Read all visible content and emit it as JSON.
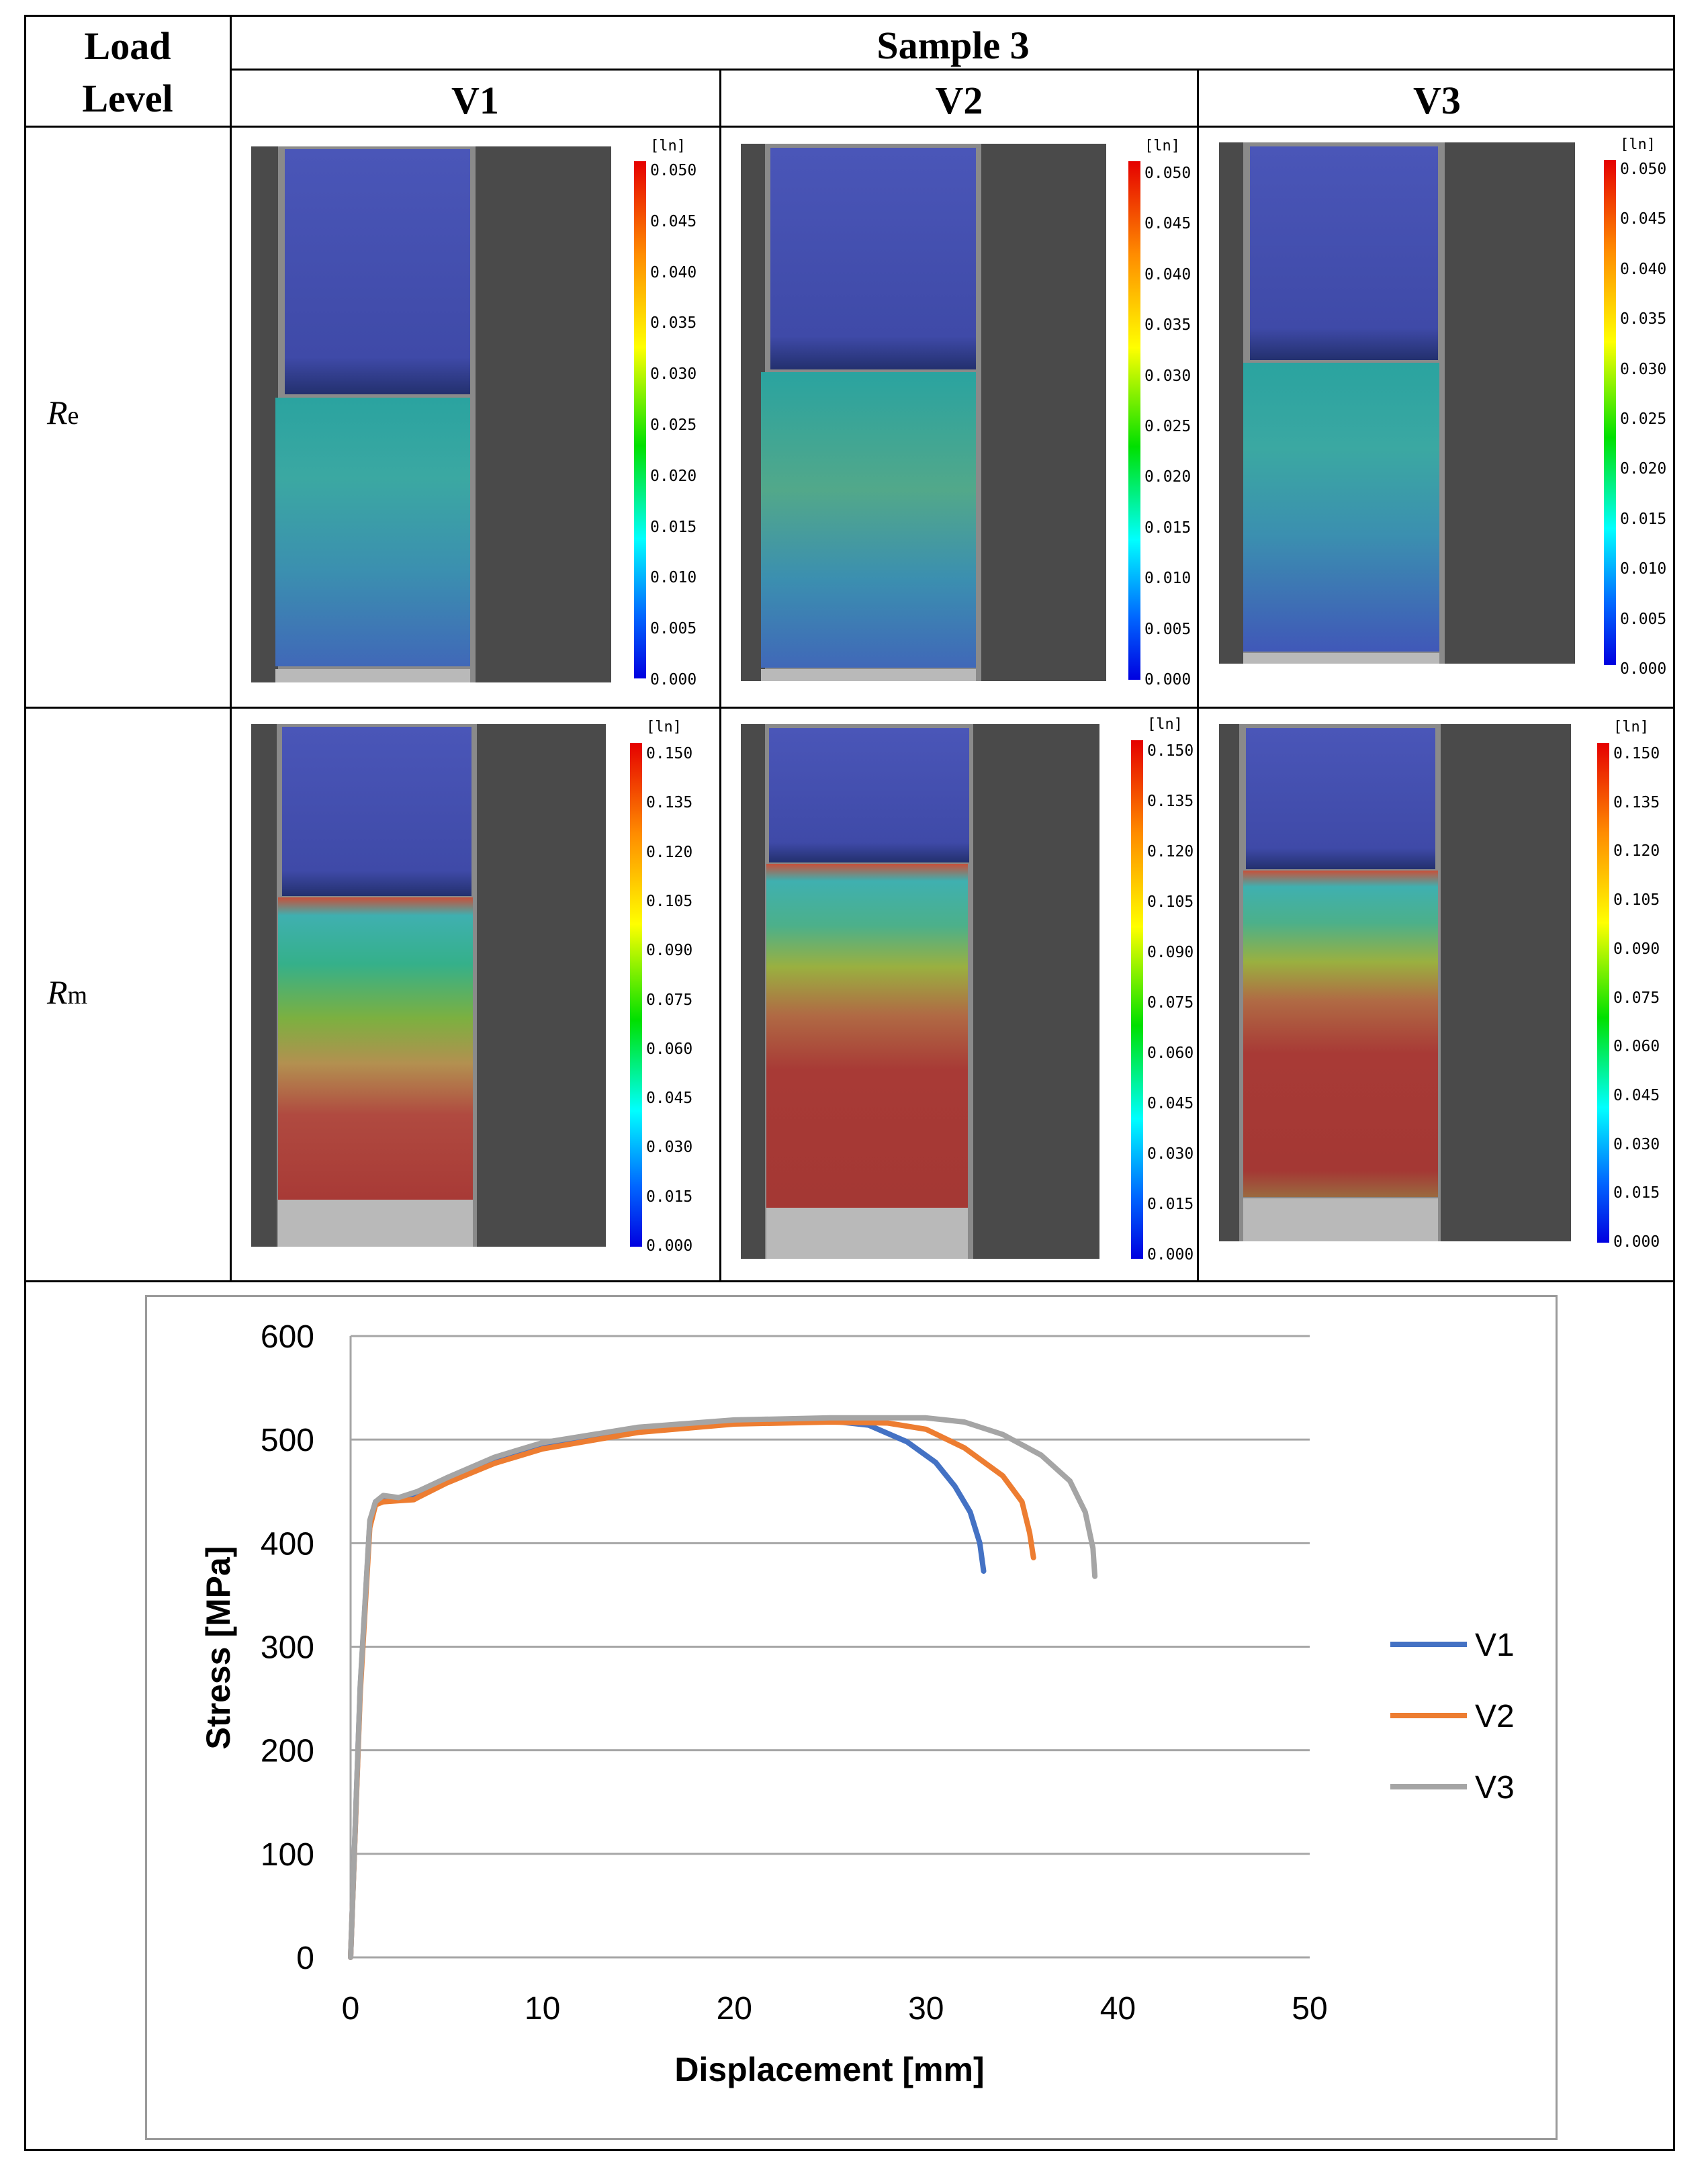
{
  "table": {
    "col_header_load": "Load Level",
    "col_header_sample": "Sample 3",
    "variants": [
      "V1",
      "V2",
      "V3"
    ],
    "rows": [
      {
        "base": "R",
        "sub": "e"
      },
      {
        "base": "R",
        "sub": "m"
      }
    ]
  },
  "colorbars": {
    "unit": "[ln]",
    "re_ticks": [
      "0.050",
      "0.045",
      "0.040",
      "0.035",
      "0.030",
      "0.025",
      "0.020",
      "0.015",
      "0.010",
      "0.005",
      "0.000"
    ],
    "rm_ticks": [
      "0.150",
      "0.135",
      "0.120",
      "0.105",
      "0.090",
      "0.075",
      "0.060",
      "0.045",
      "0.030",
      "0.015",
      "0.000"
    ]
  },
  "chart_data": {
    "type": "line",
    "xlabel": "Displacement [mm]",
    "ylabel": "Stress [MPa]",
    "xlim": [
      0,
      50
    ],
    "ylim": [
      0,
      600
    ],
    "xticks": [
      0,
      10,
      20,
      30,
      40,
      50
    ],
    "yticks": [
      0,
      100,
      200,
      300,
      400,
      500,
      600
    ],
    "grid": "horizontal",
    "legend": "right",
    "series": [
      {
        "name": "V1",
        "color": "#4472C4",
        "x": [
          0,
          0.5,
          1.0,
          1.3,
          1.7,
          2.5,
          3.5,
          5,
          7.5,
          10,
          15,
          20,
          25,
          27,
          29,
          30.5,
          31.5,
          32.3,
          32.8,
          33.0
        ],
        "y": [
          0,
          260,
          420,
          440,
          443,
          442,
          448,
          462,
          482,
          496,
          511,
          517,
          518,
          514,
          498,
          478,
          455,
          430,
          400,
          373
        ]
      },
      {
        "name": "V2",
        "color": "#ED7D31",
        "x": [
          0,
          0.5,
          1.0,
          1.3,
          1.7,
          2.5,
          3.3,
          3.6,
          5,
          7.5,
          10,
          15,
          20,
          25,
          28,
          30,
          32,
          34,
          35,
          35.4,
          35.6
        ],
        "y": [
          0,
          255,
          415,
          437,
          440,
          441,
          442,
          445,
          458,
          477,
          491,
          507,
          515,
          517,
          516,
          510,
          492,
          465,
          440,
          410,
          386
        ]
      },
      {
        "name": "V3",
        "color": "#A5A5A5",
        "x": [
          0,
          0.5,
          1.0,
          1.3,
          1.7,
          2.5,
          3.5,
          5,
          7.5,
          10,
          15,
          20,
          25,
          30,
          32,
          34,
          36,
          37.5,
          38.3,
          38.7,
          38.8
        ],
        "y": [
          0,
          262,
          422,
          440,
          446,
          444,
          450,
          463,
          483,
          497,
          512,
          519,
          521,
          521,
          517,
          505,
          485,
          460,
          430,
          395,
          368
        ]
      }
    ]
  }
}
